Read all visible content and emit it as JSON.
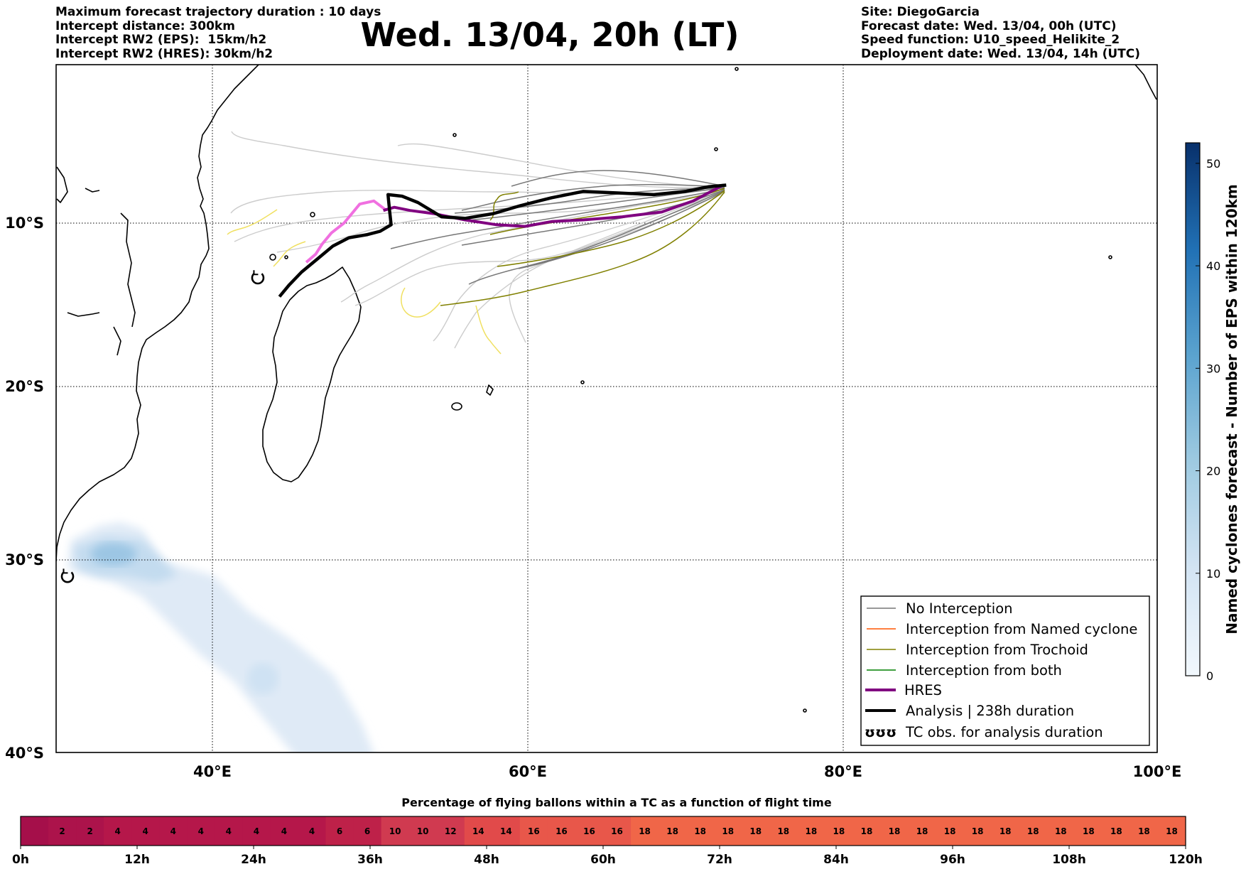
{
  "header": {
    "left_lines": [
      "Maximum forecast trajectory duration : 10 days",
      "Intercept distance: 300km",
      "Intercept RW2 (EPS):  15km/h2",
      "Intercept RW2 (HRES): 30km/h2"
    ],
    "title": "Wed. 13/04, 20h (LT)",
    "right_lines": [
      "Site: DiegoGarcia",
      "Forecast date: Wed. 13/04, 00h (UTC)",
      "Speed function: U10_speed_Helikite_2",
      "Deployment date: Wed. 13/04, 14h (UTC)"
    ]
  },
  "map": {
    "lat_labels": [
      "10°S",
      "20°S",
      "30°S",
      "40°S"
    ],
    "lon_labels": [
      "40°E",
      "60°E",
      "80°E",
      "100°E"
    ],
    "extent": {
      "lon": [
        30,
        100
      ],
      "lat": [
        0,
        -40
      ]
    },
    "gridlines": true,
    "colors": {
      "no_interception": "#777777",
      "named_cyclone": "#ff5500",
      "trochoid": "#808000",
      "both": "#008000",
      "hres": "#800080",
      "analysis": "#000000",
      "eps_light": "#cccccc",
      "eps_yellow": "#f0e060",
      "hres_pink": "#f070e0"
    },
    "analysis_track": [
      [
        72.6,
        -7.6
      ],
      [
        71.5,
        -7.7
      ],
      [
        70,
        -8.0
      ],
      [
        68,
        -8.2
      ],
      [
        65.8,
        -8.1
      ],
      [
        63.5,
        -8.0
      ],
      [
        61.5,
        -8.4
      ],
      [
        59.5,
        -8.9
      ],
      [
        57.8,
        -9.4
      ],
      [
        56,
        -9.7
      ],
      [
        54.5,
        -9.6
      ],
      [
        53,
        -8.7
      ],
      [
        52,
        -8.3
      ],
      [
        51.1,
        -8.2
      ],
      [
        51.2,
        -9.2
      ],
      [
        51.3,
        -10.1
      ],
      [
        50.6,
        -10.5
      ],
      [
        49.8,
        -10.7
      ],
      [
        48.6,
        -10.9
      ],
      [
        47.6,
        -11.4
      ],
      [
        46.6,
        -12.2
      ],
      [
        45.6,
        -13.0
      ],
      [
        44.8,
        -13.8
      ],
      [
        44.2,
        -14.5
      ]
    ],
    "hres_track": [
      [
        72.4,
        -7.6
      ],
      [
        70.5,
        -8.6
      ],
      [
        68.5,
        -9.3
      ],
      [
        66,
        -9.6
      ],
      [
        63.5,
        -9.8
      ],
      [
        61.5,
        -9.9
      ],
      [
        59.8,
        -10.2
      ],
      [
        58,
        -10.1
      ],
      [
        56,
        -9.8
      ],
      [
        54,
        -9.4
      ],
      [
        52.5,
        -9.2
      ],
      [
        51.5,
        -9.0
      ],
      [
        50.8,
        -9.2
      ]
    ],
    "hres_pink_track": [
      [
        51,
        -9.2
      ],
      [
        50.2,
        -8.6
      ],
      [
        49.3,
        -8.8
      ],
      [
        48.8,
        -9.4
      ],
      [
        48.3,
        -10.0
      ],
      [
        47.5,
        -10.6
      ],
      [
        46.9,
        -11.3
      ],
      [
        46.5,
        -11.9
      ],
      [
        45.9,
        -12.4
      ]
    ],
    "tc_observations": [
      [
        42.8,
        -13.4
      ],
      [
        30.7,
        -30.9
      ]
    ]
  },
  "colorbar": {
    "label": "Named cyclones forecast - Number of EPS within 120km",
    "ticks": [
      "0",
      "10",
      "20",
      "30",
      "40",
      "50"
    ],
    "range": [
      0,
      52
    ],
    "colormap": [
      "#f2f8fd",
      "#08306b"
    ]
  },
  "legend": {
    "items": [
      {
        "label": "No Interception",
        "style": "thin",
        "color": "#777777"
      },
      {
        "label": "Interception from Named cyclone",
        "style": "thin",
        "color": "#ff5500"
      },
      {
        "label": "Interception from Trochoid",
        "style": "thin",
        "color": "#808000"
      },
      {
        "label": "Interception from both",
        "style": "thin",
        "color": "#008000"
      },
      {
        "label": "HRES",
        "style": "thick",
        "color": "#800080"
      },
      {
        "label": "Analysis | 238h duration",
        "style": "thick",
        "color": "#000000"
      },
      {
        "label": "TC obs. for analysis duration",
        "style": "symbol",
        "symbol": "ʊʊʊ"
      }
    ]
  },
  "timebar": {
    "title": "Percentage of flying ballons within a TC as a function of flight time",
    "values": [
      "",
      "2",
      "2",
      "4",
      "4",
      "4",
      "4",
      "4",
      "4",
      "4",
      "4",
      "6",
      "6",
      "10",
      "10",
      "12",
      "14",
      "14",
      "16",
      "16",
      "16",
      "16",
      "18",
      "18",
      "18",
      "18",
      "18",
      "18",
      "18",
      "18",
      "18",
      "18",
      "18",
      "18",
      "18",
      "18",
      "18",
      "18",
      "18",
      "18",
      "18",
      "18"
    ],
    "tick_labels": [
      "0h",
      "12h",
      "24h",
      "36h",
      "48h",
      "60h",
      "72h",
      "84h",
      "96h",
      "108h",
      "120h"
    ],
    "colors": {
      "low": "#a50f4a",
      "mid": "#d03a50",
      "high": "#f06648"
    }
  }
}
